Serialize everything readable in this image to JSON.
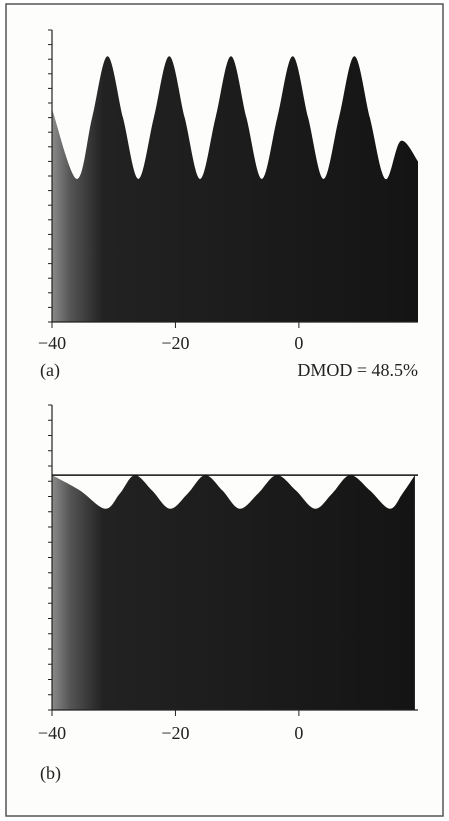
{
  "chart_data": [
    {
      "type": "area",
      "panel_label": "(a)",
      "annotation": "DMOD = 48.5%",
      "x": [
        -40,
        -36,
        -33.5,
        -31,
        -28.5,
        -26,
        -23.5,
        -21,
        -18.5,
        -16,
        -13.5,
        -11,
        -8.5,
        -6,
        -3.5,
        -1,
        1.5,
        4,
        6.5,
        9,
        11.5,
        14,
        16.5,
        19.3
      ],
      "values": [
        73,
        49,
        70,
        91,
        70,
        49,
        70,
        91,
        70,
        49,
        70,
        91,
        70,
        49,
        70,
        91,
        70,
        49,
        70,
        91,
        70,
        49,
        62,
        55
      ],
      "xlim": [
        -40,
        19.3
      ],
      "ylim": [
        0,
        100
      ],
      "xticks": [
        {
          "value": -40,
          "label": "−40"
        },
        {
          "value": -20,
          "label": "−20"
        },
        0
      ],
      "yticks": [
        0,
        5,
        10,
        15,
        20,
        25,
        30,
        35,
        40,
        45,
        50,
        55,
        60,
        65,
        70,
        75,
        80,
        85,
        90,
        95,
        100
      ],
      "color": "#141414"
    },
    {
      "type": "area",
      "panel_label": "(b)",
      "x": [
        -40,
        -35.5,
        -31.4,
        -29,
        -26.6,
        -23.8,
        -20.9,
        -18,
        -15.2,
        -12.4,
        -9.6,
        -6.6,
        -3.6,
        -0.5,
        2.6,
        5.4,
        8.3,
        11.5,
        14.7,
        16.8,
        18.8
      ],
      "values": [
        77,
        72,
        66,
        71,
        77,
        72,
        66,
        71,
        77,
        72,
        66,
        71,
        77,
        72,
        66,
        71,
        77,
        72,
        66,
        71,
        77
      ],
      "reference_line": 77,
      "xlim": [
        -40,
        19.3
      ],
      "ylim": [
        0,
        100
      ],
      "xticks": [
        {
          "value": -40,
          "label": "−40"
        },
        {
          "value": -20,
          "label": "−20"
        },
        0
      ],
      "yticks": [
        0,
        5,
        10,
        15,
        20,
        25,
        30,
        35,
        40,
        45,
        50,
        55,
        60,
        65,
        70,
        75,
        80,
        85,
        90,
        95,
        100
      ],
      "color": "#141414"
    }
  ]
}
